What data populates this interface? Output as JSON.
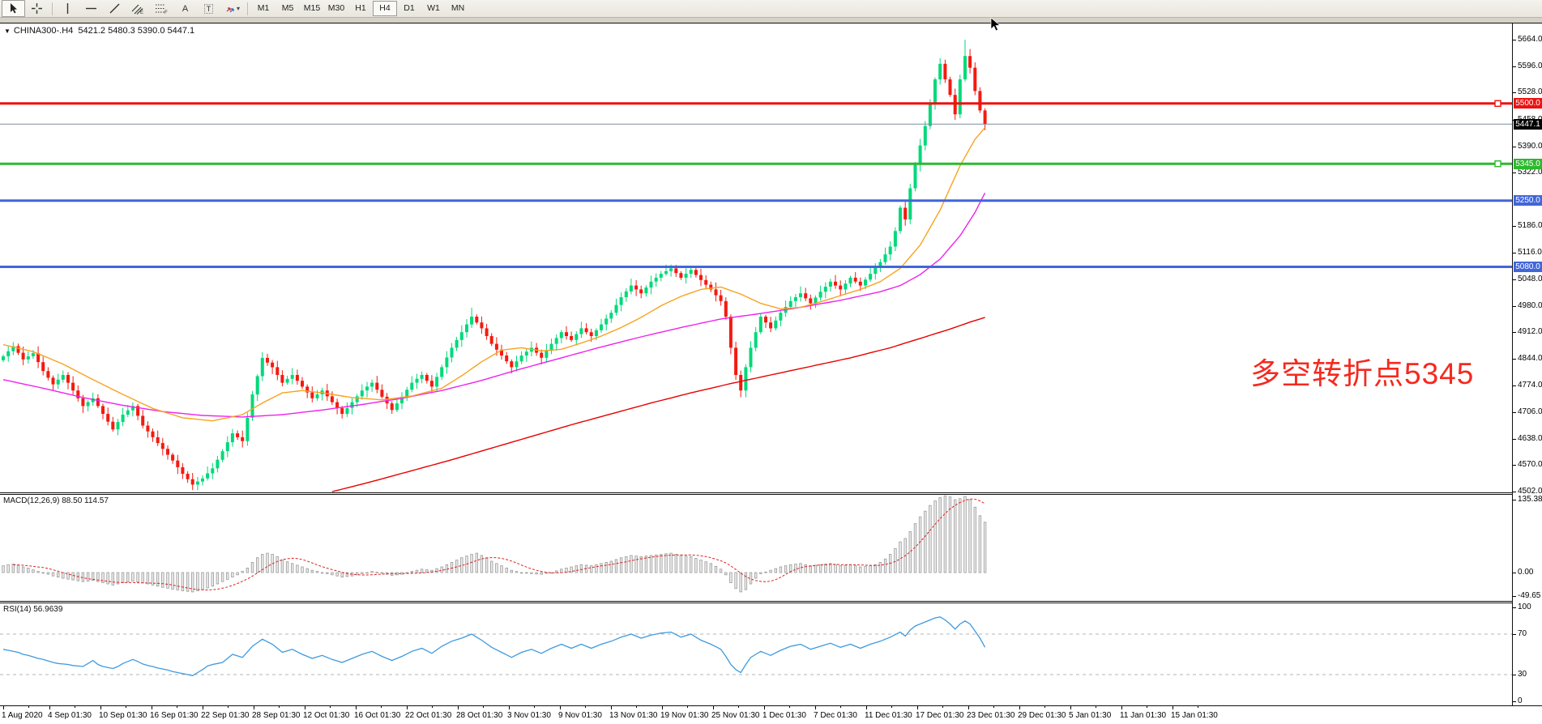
{
  "toolbar": {
    "tools": [
      "cursor",
      "crosshair",
      "separator",
      "vertical-line",
      "horizontal-line",
      "trendline",
      "equidistant-channel",
      "fibonacci",
      "text",
      "text-label",
      "arrows-dropdown",
      "separator"
    ],
    "active_tool": "cursor",
    "timeframes": [
      "M1",
      "M5",
      "M15",
      "M30",
      "H1",
      "H4",
      "D1",
      "W1",
      "MN"
    ],
    "active_timeframe": "H4"
  },
  "icons": {
    "dropdown_triangle": "▼",
    "caret_down": "▾"
  },
  "chart": {
    "symbol": "CHINA300-.H4",
    "ohlc_text": "5421.2 5480.3 5390.0 5447.1"
  },
  "annotation": {
    "text": "多空转折点5345",
    "color": "#f5291f"
  },
  "indicators": {
    "macd": {
      "label": "MACD(12,26,9) 88.50 114.57",
      "axis_values": [
        135.38,
        0.0,
        -49.65
      ]
    },
    "rsi": {
      "label": "RSI(14) 56.9639",
      "axis_values": [
        100,
        70,
        30,
        0
      ],
      "levels": [
        70,
        30
      ]
    }
  },
  "price_axis": {
    "ticks": [
      5664,
      5596,
      5528,
      5458,
      5390,
      5322,
      5186,
      5116,
      5048,
      4980,
      4912,
      4844,
      4774,
      4706,
      4638,
      4570,
      4502
    ]
  },
  "time_axis": {
    "labels": [
      "1 Aug 2020",
      "4 Sep 01:30",
      "10 Sep 01:30",
      "16 Sep 01:30",
      "22 Sep 01:30",
      "28 Sep 01:30",
      "12 Oct 01:30",
      "16 Oct 01:30",
      "22 Oct 01:30",
      "28 Oct 01:30",
      "3 Nov 01:30",
      "9 Nov 01:30",
      "13 Nov 01:30",
      "19 Nov 01:30",
      "25 Nov 01:30",
      "1 Dec 01:30",
      "7 Dec 01:30",
      "11 Dec 01:30",
      "17 Dec 01:30",
      "23 Dec 01:30",
      "29 Dec 01:30",
      "5 Jan 01:30",
      "11 Jan 01:30",
      "15 Jan 01:30"
    ]
  },
  "colors": {
    "candle_up": "#00d97a",
    "candle_down": "#f41a10",
    "ma_fast": "#f7a320",
    "ma_mid": "#ee22ee",
    "ma_slow": "#e60000",
    "macd_hist_fill": "#ececec",
    "macd_hist_stroke": "#9a9a9a",
    "macd_signal": "#e02020",
    "rsi_line": "#3e9ade",
    "hline_red": "#ee1111",
    "hline_green": "#2db92d",
    "hline_blue": "#4066d9",
    "current_price_line": "#7b8da0",
    "current_price_badge": "#000000"
  },
  "chart_data": {
    "type": "candlestick+indicators",
    "symbol": "CHINA300-",
    "timeframe": "H4",
    "last_bar_ohlc": {
      "open": 5421.2,
      "high": 5480.3,
      "low": 5390.0,
      "close": 5447.1
    },
    "visible_price_range": [
      4500,
      5680
    ],
    "horizontal_lines": [
      {
        "price": 5500.0,
        "label": "5500.0",
        "color_key": "hline_red",
        "thickness": 3,
        "marker": true
      },
      {
        "price": 5345.0,
        "label": "5345.0",
        "color_key": "hline_green",
        "thickness": 3,
        "marker": true
      },
      {
        "price": 5250.0,
        "label": "5250.0",
        "color_key": "hline_blue",
        "thickness": 3,
        "marker": false
      },
      {
        "price": 5080.0,
        "label": "5080.0",
        "color_key": "hline_blue",
        "thickness": 3,
        "marker": false
      }
    ],
    "current_price": {
      "price": 5447.1,
      "label": "5447.1"
    },
    "open_first": 4840,
    "closes": [
      4850,
      4863,
      4876,
      4859,
      4842,
      4850,
      4858,
      4835,
      4812,
      4795,
      4778,
      4790,
      4802,
      4782,
      4762,
      4742,
      4722,
      4732,
      4742,
      4722,
      4702,
      4682,
      4662,
      4681,
      4700,
      4711,
      4722,
      4697,
      4672,
      4657,
      4642,
      4627,
      4612,
      4597,
      4582,
      4565,
      4548,
      4534,
      4520,
      4528,
      4536,
      4549,
      4562,
      4584,
      4606,
      4629,
      4652,
      4642,
      4632,
      4692,
      4752,
      4799,
      4846,
      4834,
      4822,
      4802,
      4782,
      4792,
      4802,
      4787,
      4772,
      4757,
      4742,
      4752,
      4762,
      4747,
      4732,
      4717,
      4702,
      4717,
      4732,
      4747,
      4762,
      4772,
      4782,
      4764,
      4746,
      4729,
      4712,
      4729,
      4746,
      4764,
      4782,
      4792,
      4802,
      4787,
      4772,
      4797,
      4822,
      4847,
      4872,
      4892,
      4912,
      4932,
      4952,
      4937,
      4922,
      4902,
      4882,
      4867,
      4852,
      4837,
      4822,
      4837,
      4852,
      4862,
      4872,
      4859,
      4846,
      4864,
      4882,
      4897,
      4912,
      4902,
      4892,
      4907,
      4922,
      4912,
      4902,
      4917,
      4932,
      4947,
      4962,
      4982,
      5002,
      5017,
      5032,
      5022,
      5012,
      5027,
      5042,
      5052,
      5062,
      5069,
      5076,
      5064,
      5052,
      5062,
      5072,
      5059,
      5046,
      5034,
      5022,
      5007,
      4992,
      4952,
      4872,
      4802,
      4762,
      4822,
      4872,
      4912,
      4952,
      4937,
      4922,
      4942,
      4962,
      4977,
      4992,
      5002,
      5012,
      4999,
      4986,
      5001,
      5016,
      5029,
      5042,
      5032,
      5022,
      5037,
      5052,
      5042,
      5032,
      5047,
      5062,
      5077,
      5092,
      5112,
      5132,
      5172,
      5232,
      5202,
      5282,
      5342,
      5392,
      5442,
      5502,
      5562,
      5602,
      5562,
      5522,
      5472,
      5562,
      5622,
      5592,
      5532,
      5482,
      5447
    ],
    "extremes": [
      {
        "i": 38,
        "low": 4506
      },
      {
        "i": 94,
        "high": 4975
      },
      {
        "i": 134,
        "high": 5086
      },
      {
        "i": 148,
        "low": 4745
      },
      {
        "i": 193,
        "high": 5664
      }
    ],
    "ma_fast_waypoints": [
      [
        0,
        4880
      ],
      [
        6,
        4862
      ],
      [
        12,
        4830
      ],
      [
        18,
        4790
      ],
      [
        24,
        4752
      ],
      [
        30,
        4716
      ],
      [
        36,
        4692
      ],
      [
        42,
        4684
      ],
      [
        48,
        4700
      ],
      [
        52,
        4730
      ],
      [
        56,
        4756
      ],
      [
        60,
        4762
      ],
      [
        64,
        4756
      ],
      [
        70,
        4744
      ],
      [
        76,
        4738
      ],
      [
        82,
        4748
      ],
      [
        88,
        4768
      ],
      [
        92,
        4800
      ],
      [
        96,
        4836
      ],
      [
        100,
        4866
      ],
      [
        104,
        4872
      ],
      [
        108,
        4864
      ],
      [
        112,
        4868
      ],
      [
        116,
        4884
      ],
      [
        120,
        4902
      ],
      [
        124,
        4924
      ],
      [
        128,
        4950
      ],
      [
        132,
        4980
      ],
      [
        136,
        5004
      ],
      [
        140,
        5022
      ],
      [
        144,
        5028
      ],
      [
        148,
        5010
      ],
      [
        152,
        4986
      ],
      [
        156,
        4972
      ],
      [
        160,
        4976
      ],
      [
        164,
        4990
      ],
      [
        168,
        5006
      ],
      [
        172,
        5022
      ],
      [
        176,
        5042
      ],
      [
        180,
        5076
      ],
      [
        184,
        5136
      ],
      [
        188,
        5226
      ],
      [
        192,
        5340
      ],
      [
        195,
        5408
      ],
      [
        197,
        5438
      ]
    ],
    "ma_mid_waypoints": [
      [
        0,
        4790
      ],
      [
        8,
        4768
      ],
      [
        16,
        4744
      ],
      [
        24,
        4724
      ],
      [
        32,
        4708
      ],
      [
        40,
        4698
      ],
      [
        48,
        4694
      ],
      [
        56,
        4700
      ],
      [
        64,
        4712
      ],
      [
        72,
        4726
      ],
      [
        80,
        4742
      ],
      [
        88,
        4762
      ],
      [
        96,
        4788
      ],
      [
        104,
        4818
      ],
      [
        112,
        4846
      ],
      [
        120,
        4874
      ],
      [
        128,
        4900
      ],
      [
        136,
        4924
      ],
      [
        144,
        4946
      ],
      [
        152,
        4960
      ],
      [
        160,
        4976
      ],
      [
        168,
        4994
      ],
      [
        176,
        5016
      ],
      [
        180,
        5032
      ],
      [
        184,
        5060
      ],
      [
        188,
        5100
      ],
      [
        192,
        5160
      ],
      [
        195,
        5220
      ],
      [
        197,
        5270
      ]
    ],
    "ma_slow_waypoints": [
      [
        66,
        4502
      ],
      [
        74,
        4528
      ],
      [
        82,
        4556
      ],
      [
        90,
        4584
      ],
      [
        98,
        4614
      ],
      [
        106,
        4644
      ],
      [
        114,
        4674
      ],
      [
        122,
        4702
      ],
      [
        130,
        4730
      ],
      [
        138,
        4756
      ],
      [
        146,
        4780
      ],
      [
        154,
        4802
      ],
      [
        162,
        4824
      ],
      [
        170,
        4846
      ],
      [
        178,
        4872
      ],
      [
        184,
        4896
      ],
      [
        190,
        4920
      ],
      [
        194,
        4938
      ],
      [
        197,
        4950
      ]
    ],
    "macd_hist": [
      12,
      14,
      15,
      13,
      10,
      8,
      5,
      2,
      0,
      -3,
      -6,
      -8,
      -10,
      -11.5,
      -13,
      -14.5,
      -16,
      -15,
      -14,
      -16,
      -18,
      -20,
      -22,
      -20,
      -18,
      -16.5,
      -15,
      -16.5,
      -18,
      -20,
      -22,
      -24,
      -26,
      -27.5,
      -29,
      -30.5,
      -32,
      -33,
      -34,
      -32,
      -30,
      -27,
      -24,
      -20,
      -16,
      -12,
      -8,
      -4,
      2,
      8,
      18,
      26,
      32,
      34,
      32,
      28,
      22,
      19,
      16,
      13,
      10,
      7,
      4,
      2,
      0,
      -2,
      -4,
      -6,
      -8,
      -7,
      -6,
      -4,
      -2,
      0,
      2,
      0.5,
      -1,
      -3,
      -5,
      -4,
      -3,
      -0.5,
      2,
      4,
      6,
      5,
      4,
      7,
      10,
      14,
      18,
      22,
      26,
      29,
      32,
      34,
      30,
      26,
      20,
      16,
      12,
      8,
      4,
      2,
      0,
      -1,
      -2,
      -2.5,
      -3,
      -1.5,
      0,
      3,
      6,
      8,
      10,
      12,
      14,
      13,
      12,
      14,
      16,
      18,
      20,
      23,
      26,
      28,
      30,
      29,
      28,
      29,
      30,
      31,
      32,
      33,
      34,
      32,
      30,
      29,
      28,
      25,
      22,
      19,
      16,
      11,
      6,
      -4,
      -18,
      -28,
      -34,
      -30,
      -20,
      -10,
      -2,
      1,
      4,
      7,
      10,
      12,
      14,
      15,
      16,
      14,
      12,
      13,
      14,
      15,
      16,
      14,
      12,
      13,
      14,
      12,
      10,
      11,
      12,
      14,
      18,
      24,
      32,
      42,
      54,
      60,
      72,
      86,
      98,
      108,
      118,
      126,
      132,
      135,
      133,
      128,
      130,
      134,
      128,
      115,
      100,
      88.5
    ],
    "rsi": [
      55,
      54,
      53,
      52,
      50,
      49,
      47.5,
      46,
      45,
      43.5,
      42,
      41,
      40.5,
      40,
      39,
      38.5,
      38,
      41,
      44,
      40,
      38,
      37,
      36,
      38,
      41,
      43,
      45,
      43,
      40.5,
      39,
      38,
      36.5,
      35.5,
      34.5,
      33,
      32,
      31,
      30,
      29,
      32,
      35,
      38.5,
      40,
      41,
      42,
      46,
      50,
      48.5,
      47,
      52.5,
      58,
      61.5,
      65,
      62.5,
      60,
      56,
      52,
      53.5,
      55,
      52.5,
      50,
      48,
      46,
      47.5,
      49,
      47,
      45,
      43.5,
      42,
      44,
      46,
      48,
      50,
      51.5,
      53,
      50.5,
      48,
      46,
      44,
      46,
      48,
      50.5,
      53,
      54.5,
      56,
      53.5,
      51,
      54.5,
      58,
      60.5,
      63,
      64.5,
      66,
      68,
      70,
      67,
      64,
      60.5,
      57,
      54.5,
      52,
      49.5,
      47,
      49.5,
      52,
      53.5,
      55,
      53,
      51,
      53.5,
      56,
      58,
      60,
      58,
      56,
      58,
      60,
      58,
      56,
      58,
      60,
      61.5,
      63,
      65,
      67,
      68.5,
      70,
      68,
      66,
      67.5,
      69,
      70,
      71,
      71.5,
      72,
      69.5,
      67,
      68.5,
      70,
      67,
      64,
      62,
      60,
      57.5,
      55,
      48,
      40,
      35,
      32,
      40,
      47,
      50,
      53,
      51,
      49,
      51.5,
      54,
      56,
      58,
      59,
      60,
      57.5,
      55,
      56.5,
      58,
      59.5,
      61,
      59,
      57,
      58.5,
      60,
      58,
      56,
      58,
      60,
      61.5,
      63,
      65,
      67,
      69.5,
      72,
      68,
      74,
      78,
      80,
      82,
      84,
      86,
      87,
      84,
      80,
      75,
      80,
      83,
      80,
      73,
      66,
      57
    ]
  }
}
